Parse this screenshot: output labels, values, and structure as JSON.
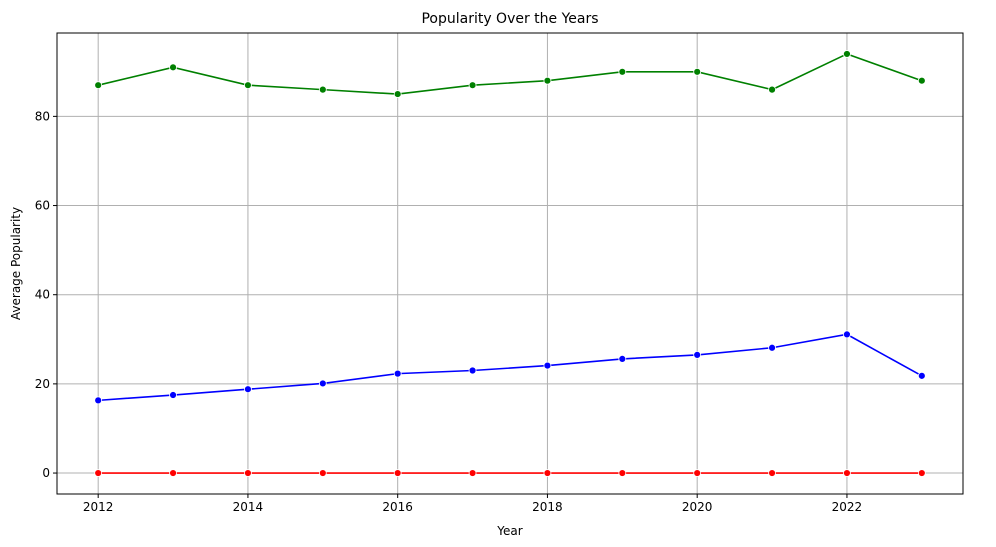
{
  "chart_data": {
    "type": "line",
    "title": "Popularity Over the Years",
    "xlabel": "Year",
    "ylabel": "Average Popularity",
    "x": [
      2012,
      2013,
      2014,
      2015,
      2016,
      2017,
      2018,
      2019,
      2020,
      2021,
      2022,
      2023
    ],
    "xlim": [
      2011.45,
      2023.55
    ],
    "ylim": [
      -4.7,
      98.7
    ],
    "xticks": [
      2012,
      2014,
      2016,
      2018,
      2020,
      2022
    ],
    "yticks": [
      0,
      20,
      40,
      60,
      80
    ],
    "grid": true,
    "series": [
      {
        "color": "#008000",
        "values": [
          87,
          91,
          87,
          86,
          85,
          87,
          88,
          90,
          90,
          86,
          94,
          88
        ]
      },
      {
        "color": "#0000ff",
        "values": [
          16.3,
          17.5,
          18.8,
          20.1,
          22.3,
          23.0,
          24.1,
          25.6,
          26.5,
          28.1,
          31.1,
          21.8
        ]
      },
      {
        "color": "#ff0000",
        "values": [
          0,
          0,
          0,
          0,
          0,
          0,
          0,
          0,
          0,
          0,
          0,
          0
        ]
      }
    ]
  }
}
